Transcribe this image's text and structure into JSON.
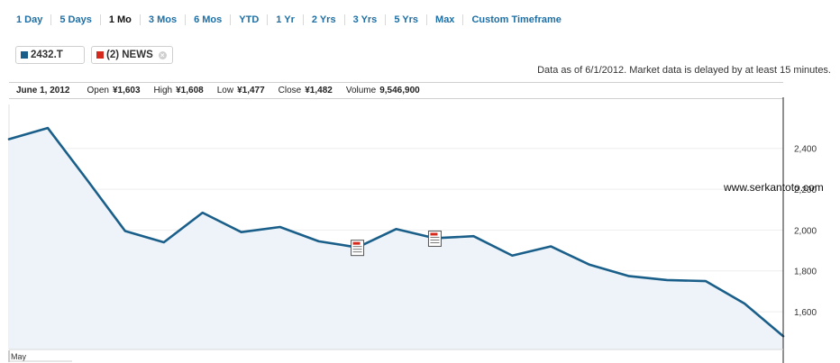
{
  "timeframes": [
    "1 Day",
    "5 Days",
    "1 Mo",
    "3 Mos",
    "6 Mos",
    "YTD",
    "1 Yr",
    "2 Yrs",
    "3 Yrs",
    "5 Yrs",
    "Max",
    "Custom Timeframe"
  ],
  "active_timeframe": "1 Mo",
  "symbols": {
    "primary": {
      "label": "2432.T",
      "color": "#1a5f8a"
    },
    "news": {
      "label": "(2) NEWS",
      "color": "#d6291d"
    }
  },
  "as_of_text": "Data as of 6/1/2012. Market data is delayed by at least 15 minutes.",
  "ohlc": {
    "date": "June 1, 2012",
    "open_label": "Open",
    "open": "¥1,603",
    "high_label": "High",
    "high": "¥1,608",
    "low_label": "Low",
    "low": "¥1,477",
    "close_label": "Close",
    "close": "¥1,482",
    "volume_label": "Volume",
    "volume": "9,546,900"
  },
  "watermark": "www.serkantoto.com",
  "colors": {
    "line": "#1a5f8a",
    "area": "#eef3f9",
    "grid": "#eeeeee",
    "tab": "#1d6fa5",
    "news_icon": "#d6291d"
  },
  "chart_data": {
    "type": "area",
    "series": [
      {
        "values": [
          2445,
          2500,
          2250,
          1995,
          1940,
          2085,
          1990,
          2015,
          1945,
          1915,
          2005,
          1960,
          1970,
          1875,
          1920,
          1830,
          1775,
          1755,
          1750,
          1640,
          1480
        ]
      }
    ],
    "x_tick_labels": [
      "May"
    ],
    "y_ticks": [
      1600,
      1800,
      2000,
      2200,
      2400
    ],
    "y_tick_labels": [
      "1,600",
      "1,800",
      "2,000",
      "2,200",
      "2,400"
    ],
    "ylim": [
      1415,
      2615
    ],
    "grid": true,
    "news_markers_at_index": [
      9,
      11
    ]
  }
}
